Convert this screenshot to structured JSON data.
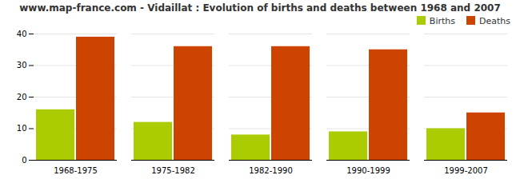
{
  "chart_data": {
    "type": "bar",
    "title": "www.map-france.com - Vidaillat : Evolution of births and deaths between 1968 and 2007",
    "categories": [
      "1968-1975",
      "1975-1982",
      "1982-1990",
      "1990-1999",
      "1999-2007"
    ],
    "series": [
      {
        "name": "Births",
        "color": "#aacc00",
        "values": [
          16,
          12,
          8,
          9,
          10
        ]
      },
      {
        "name": "Deaths",
        "color": "#cc4400",
        "values": [
          39,
          36,
          36,
          35,
          15
        ]
      }
    ],
    "ylim": [
      0,
      40
    ],
    "yticks": [
      0,
      10,
      20,
      30,
      40
    ],
    "grid": true,
    "legend": "upper right"
  }
}
